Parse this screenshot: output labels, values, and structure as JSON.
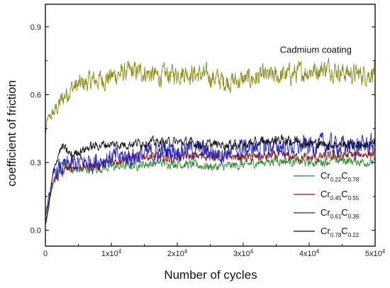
{
  "chart_data": {
    "type": "line",
    "xlabel": "Number of cycles",
    "ylabel": "coefficient of friction",
    "xlim": [
      0,
      50000
    ],
    "ylim": [
      -0.07,
      1.0
    ],
    "x_ticks": [
      0,
      10000,
      20000,
      30000,
      40000,
      50000
    ],
    "x_tick_labels": [
      "0",
      "1x10",
      "2x10",
      "3x10",
      "4x10",
      "5x10"
    ],
    "x_tick_exponents": [
      "",
      "4",
      "4",
      "4",
      "4",
      "4"
    ],
    "y_ticks": [
      0.0,
      0.3,
      0.6,
      0.9
    ],
    "y_tick_labels": [
      "0.0",
      "0.3",
      "0.6",
      "0.9"
    ],
    "grid": false,
    "legend_position": "bottom-right",
    "annotations": [
      {
        "text": "Cadmium coating",
        "x": 41000,
        "y": 0.785
      }
    ],
    "series": [
      {
        "name": "Cadmium coating",
        "legend": false,
        "color": "#8b8b19",
        "noise": 0.022,
        "points": [
          [
            0,
            0.42
          ],
          [
            300,
            0.49
          ],
          [
            1000,
            0.51
          ],
          [
            2000,
            0.55
          ],
          [
            3000,
            0.6
          ],
          [
            4000,
            0.63
          ],
          [
            5000,
            0.64
          ],
          [
            7000,
            0.66
          ],
          [
            9000,
            0.67
          ],
          [
            11000,
            0.69
          ],
          [
            13000,
            0.7
          ],
          [
            15000,
            0.7
          ],
          [
            17000,
            0.68
          ],
          [
            19000,
            0.69
          ],
          [
            21000,
            0.7
          ],
          [
            23000,
            0.69
          ],
          [
            25000,
            0.68
          ],
          [
            27000,
            0.66
          ],
          [
            29000,
            0.66
          ],
          [
            31000,
            0.67
          ],
          [
            33000,
            0.68
          ],
          [
            35000,
            0.68
          ],
          [
            37000,
            0.69
          ],
          [
            39000,
            0.7
          ],
          [
            41000,
            0.71
          ],
          [
            43000,
            0.72
          ],
          [
            45000,
            0.7
          ],
          [
            47000,
            0.69
          ],
          [
            49000,
            0.69
          ],
          [
            50000,
            0.71
          ]
        ]
      },
      {
        "name": "Cr0.22C0.78",
        "legend_main": [
          "Cr",
          "C"
        ],
        "legend_subs": [
          "0.22",
          "0.78"
        ],
        "color": "#2e8b2e",
        "noise": 0.01,
        "points": [
          [
            0,
            0.06
          ],
          [
            300,
            0.1
          ],
          [
            800,
            0.17
          ],
          [
            1300,
            0.22
          ],
          [
            2000,
            0.25
          ],
          [
            2600,
            0.31
          ],
          [
            3200,
            0.28
          ],
          [
            4000,
            0.27
          ],
          [
            6000,
            0.27
          ],
          [
            10000,
            0.28
          ],
          [
            14000,
            0.29
          ],
          [
            18000,
            0.3
          ],
          [
            22000,
            0.29
          ],
          [
            26000,
            0.28
          ],
          [
            30000,
            0.29
          ],
          [
            35000,
            0.31
          ],
          [
            40000,
            0.3
          ],
          [
            45000,
            0.31
          ],
          [
            50000,
            0.3
          ]
        ]
      },
      {
        "name": "Cr0.45C0.55",
        "legend_main": [
          "Cr",
          "C"
        ],
        "legend_subs": [
          "0.45",
          "0.55"
        ],
        "color": "#8b1a1a",
        "noise": 0.01,
        "points": [
          [
            0,
            0.02
          ],
          [
            400,
            0.08
          ],
          [
            900,
            0.17
          ],
          [
            1300,
            0.22
          ],
          [
            2000,
            0.24
          ],
          [
            3000,
            0.27
          ],
          [
            4000,
            0.28
          ],
          [
            6000,
            0.28
          ],
          [
            10000,
            0.3
          ],
          [
            12000,
            0.32
          ],
          [
            15000,
            0.33
          ],
          [
            19000,
            0.32
          ],
          [
            23000,
            0.33
          ],
          [
            27000,
            0.33
          ],
          [
            31000,
            0.32
          ],
          [
            35000,
            0.33
          ],
          [
            40000,
            0.32
          ],
          [
            45000,
            0.33
          ],
          [
            50000,
            0.34
          ]
        ]
      },
      {
        "name": "Cr0.61C0.39",
        "legend_main": [
          "Cr",
          "C"
        ],
        "legend_subs": [
          "0.61",
          "0.39"
        ],
        "color": "#1f1fc8",
        "noise": 0.022,
        "points": [
          [
            0,
            0.07
          ],
          [
            400,
            0.12
          ],
          [
            900,
            0.2
          ],
          [
            1500,
            0.26
          ],
          [
            2200,
            0.27
          ],
          [
            3000,
            0.28
          ],
          [
            4000,
            0.29
          ],
          [
            6000,
            0.3
          ],
          [
            8000,
            0.31
          ],
          [
            10000,
            0.32
          ],
          [
            14000,
            0.33
          ],
          [
            18000,
            0.35
          ],
          [
            22000,
            0.36
          ],
          [
            26000,
            0.34
          ],
          [
            30000,
            0.36
          ],
          [
            34000,
            0.37
          ],
          [
            38000,
            0.37
          ],
          [
            42000,
            0.38
          ],
          [
            46000,
            0.37
          ],
          [
            50000,
            0.38
          ]
        ]
      },
      {
        "name": "Cr0.78C0.22",
        "legend_main": [
          "Cr",
          "C"
        ],
        "legend_subs": [
          "0.78",
          "0.22"
        ],
        "color": "#111111",
        "noise": 0.01,
        "points": [
          [
            0,
            0.03
          ],
          [
            400,
            0.1
          ],
          [
            1000,
            0.22
          ],
          [
            1600,
            0.3
          ],
          [
            2100,
            0.35
          ],
          [
            2700,
            0.37
          ],
          [
            3200,
            0.35
          ],
          [
            4000,
            0.33
          ],
          [
            5000,
            0.35
          ],
          [
            7000,
            0.37
          ],
          [
            9000,
            0.38
          ],
          [
            12000,
            0.38
          ],
          [
            15000,
            0.39
          ],
          [
            18000,
            0.39
          ],
          [
            21000,
            0.39
          ],
          [
            24000,
            0.38
          ],
          [
            27000,
            0.38
          ],
          [
            30000,
            0.38
          ],
          [
            33000,
            0.39
          ],
          [
            36000,
            0.4
          ],
          [
            39000,
            0.39
          ],
          [
            42000,
            0.38
          ],
          [
            45000,
            0.38
          ],
          [
            48000,
            0.38
          ],
          [
            50000,
            0.38
          ]
        ]
      }
    ]
  }
}
